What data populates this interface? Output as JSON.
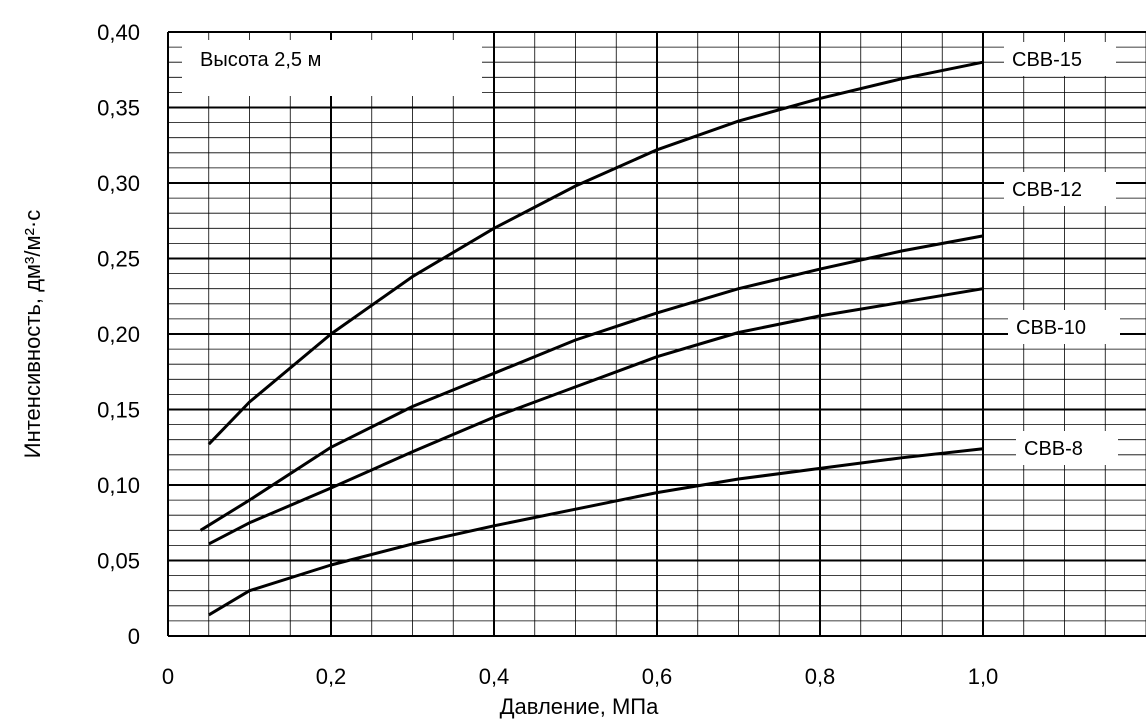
{
  "chart_data": {
    "type": "line",
    "title": "",
    "annotation": "Высота 2,5 м",
    "xlabel": "Давление, МПа",
    "ylabel": "Интенсивность, дм³/м²·с",
    "xlim": [
      0,
      1.2
    ],
    "ylim": [
      0,
      0.4
    ],
    "x_ticks": [
      {
        "value": 0,
        "label": "0"
      },
      {
        "value": 0.2,
        "label": "0,2"
      },
      {
        "value": 0.4,
        "label": "0,4"
      },
      {
        "value": 0.6,
        "label": "0,6"
      },
      {
        "value": 0.8,
        "label": "0,8"
      },
      {
        "value": 1.0,
        "label": "1,0"
      }
    ],
    "y_ticks": [
      {
        "value": 0,
        "label": "0"
      },
      {
        "value": 0.05,
        "label": "0,05"
      },
      {
        "value": 0.1,
        "label": "0,10"
      },
      {
        "value": 0.15,
        "label": "0,15"
      },
      {
        "value": 0.2,
        "label": "0,20"
      },
      {
        "value": 0.25,
        "label": "0,25"
      },
      {
        "value": 0.3,
        "label": "0,30"
      },
      {
        "value": 0.35,
        "label": "0,35"
      },
      {
        "value": 0.4,
        "label": "0,40"
      }
    ],
    "grid": true,
    "series": [
      {
        "name": "СВВ-15",
        "x": [
          0.05,
          0.1,
          0.2,
          0.3,
          0.4,
          0.5,
          0.6,
          0.7,
          0.8,
          0.9,
          1.0
        ],
        "y": [
          0.127,
          0.155,
          0.2,
          0.238,
          0.27,
          0.298,
          0.322,
          0.341,
          0.356,
          0.369,
          0.38
        ]
      },
      {
        "name": "СВВ-12",
        "x": [
          0.04,
          0.1,
          0.2,
          0.3,
          0.4,
          0.5,
          0.6,
          0.7,
          0.8,
          0.9,
          1.0
        ],
        "y": [
          0.07,
          0.09,
          0.125,
          0.152,
          0.174,
          0.196,
          0.214,
          0.23,
          0.243,
          0.255,
          0.265
        ]
      },
      {
        "name": "СВВ-10",
        "x": [
          0.05,
          0.1,
          0.2,
          0.3,
          0.4,
          0.5,
          0.6,
          0.7,
          0.8,
          0.9,
          1.0
        ],
        "y": [
          0.061,
          0.075,
          0.098,
          0.122,
          0.145,
          0.165,
          0.185,
          0.201,
          0.212,
          0.221,
          0.23
        ]
      },
      {
        "name": "СВВ-8",
        "x": [
          0.05,
          0.1,
          0.2,
          0.3,
          0.4,
          0.5,
          0.6,
          0.7,
          0.8,
          0.9,
          1.0
        ],
        "y": [
          0.014,
          0.03,
          0.047,
          0.061,
          0.073,
          0.084,
          0.095,
          0.104,
          0.111,
          0.118,
          0.124
        ]
      }
    ]
  }
}
